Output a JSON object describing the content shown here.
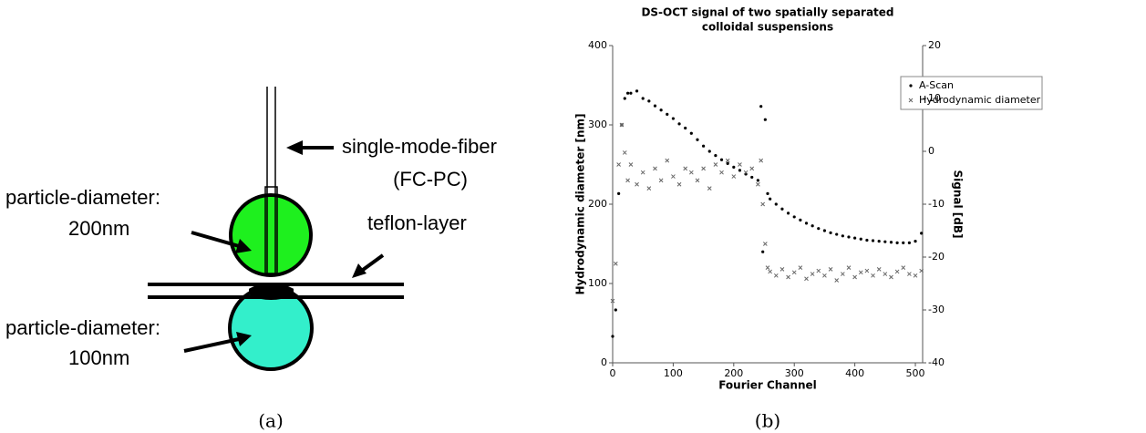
{
  "diagram": {
    "fiber_label": "single-mode-fiber",
    "fiber_sublabel": "(FC-PC)",
    "top_label": "particle-diameter:",
    "top_size": "200nm",
    "layer_label": "teflon-layer",
    "bottom_label": "particle-diameter:",
    "bottom_size": "100nm"
  },
  "captions": [
    "(a)",
    "(b)"
  ],
  "chart_data": {
    "type": "scatter",
    "title_lines": [
      "DS-OCT signal of two spatially separated",
      "colloidal suspensions"
    ],
    "xlabel": "Fourier Channel",
    "ylabel": "Hydrodynamic diameter [nm]",
    "y2label": "Signal [dB]",
    "xlim": [
      0,
      512
    ],
    "xticks": [
      0,
      100,
      200,
      300,
      400,
      500
    ],
    "ylim": [
      0,
      400
    ],
    "yticks": [
      0,
      100,
      200,
      300,
      400
    ],
    "y2lim": [
      -40,
      20
    ],
    "y2ticks": [
      -40,
      -30,
      -20,
      -10,
      0,
      10,
      20
    ],
    "x": [
      0,
      5,
      10,
      15,
      20,
      25,
      30,
      40,
      50,
      60,
      70,
      80,
      90,
      100,
      110,
      120,
      130,
      140,
      150,
      160,
      170,
      180,
      190,
      200,
      210,
      220,
      230,
      240,
      245,
      248,
      252,
      256,
      260,
      270,
      280,
      290,
      300,
      310,
      320,
      330,
      340,
      350,
      360,
      370,
      380,
      390,
      400,
      410,
      420,
      430,
      440,
      450,
      460,
      470,
      480,
      490,
      500,
      510
    ],
    "series": [
      {
        "name": "A-Scan",
        "color": "#000000",
        "axis": "y2",
        "marker": "dot",
        "values": [
          -35,
          -30,
          -8,
          5,
          10,
          11,
          11,
          11.4,
          10,
          9.5,
          8.6,
          7.8,
          7,
          6.2,
          5.2,
          4.4,
          3.4,
          2.2,
          1,
          0,
          -0.8,
          -1.6,
          -2.3,
          -3,
          -3.6,
          -4.3,
          -4.9,
          -5.5,
          8.5,
          -19,
          6,
          -8,
          -9,
          -10,
          -10.9,
          -11.7,
          -12.4,
          -13,
          -13.6,
          -14.1,
          -14.6,
          -15,
          -15.4,
          -15.7,
          -16,
          -16.2,
          -16.4,
          -16.6,
          -16.8,
          -16.9,
          -17,
          -17.1,
          -17.2,
          -17.3,
          -17.3,
          -17.3,
          -17,
          -15.5
        ]
      },
      {
        "name": "Hydrodynamic diameter",
        "color": "#666666",
        "axis": "y",
        "marker": "cross",
        "values": [
          78,
          125,
          250,
          300,
          265,
          230,
          250,
          225,
          240,
          220,
          245,
          230,
          255,
          235,
          225,
          245,
          240,
          230,
          245,
          220,
          250,
          240,
          255,
          235,
          250,
          240,
          245,
          225,
          255,
          200,
          150,
          120,
          115,
          110,
          118,
          108,
          114,
          120,
          106,
          112,
          116,
          110,
          118,
          104,
          112,
          120,
          108,
          114,
          116,
          110,
          118,
          112,
          108,
          115,
          120,
          112,
          110,
          116
        ]
      }
    ]
  }
}
